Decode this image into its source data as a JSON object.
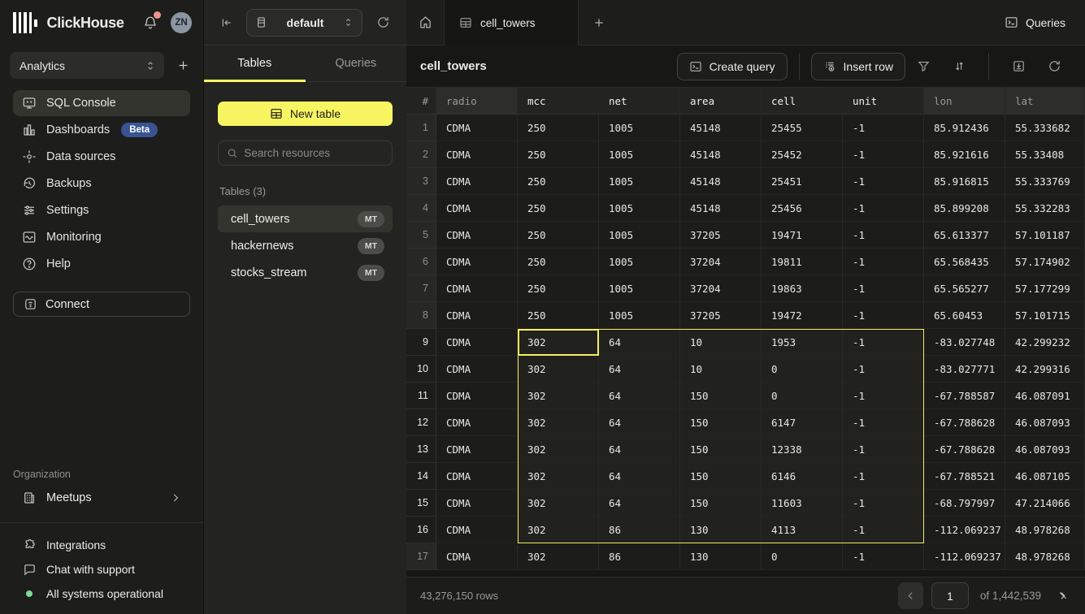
{
  "brand": {
    "name": "ClickHouse",
    "avatar_initials": "ZN"
  },
  "workspace": {
    "selected": "Analytics"
  },
  "sidebar": {
    "items": [
      {
        "label": "SQL Console"
      },
      {
        "label": "Dashboards",
        "badge": "Beta"
      },
      {
        "label": "Data sources"
      },
      {
        "label": "Backups"
      },
      {
        "label": "Settings"
      },
      {
        "label": "Monitoring"
      },
      {
        "label": "Help"
      }
    ],
    "connect_label": "Connect",
    "organization_label": "Organization",
    "meetups_label": "Meetups",
    "integrations_label": "Integrations",
    "chat_label": "Chat with support",
    "status_label": "All systems operational"
  },
  "explorer": {
    "database": "default",
    "tabs": {
      "tables": "Tables",
      "queries": "Queries"
    },
    "new_table_label": "New table",
    "search_placeholder": "Search resources",
    "section_label": "Tables (3)",
    "tables": [
      {
        "name": "cell_towers",
        "badge": "MT"
      },
      {
        "name": "hackernews",
        "badge": "MT"
      },
      {
        "name": "stocks_stream",
        "badge": "MT"
      }
    ]
  },
  "main": {
    "tab_label": "cell_towers",
    "queries_label": "Queries",
    "title": "cell_towers",
    "create_query_label": "Create query",
    "insert_row_label": "Insert row"
  },
  "table": {
    "columns": [
      "#",
      "radio",
      "mcc",
      "net",
      "area",
      "cell",
      "unit",
      "lon",
      "lat"
    ],
    "rows": [
      [
        "1",
        "CDMA",
        "250",
        "1005",
        "45148",
        "25455",
        "-1",
        "85.912436",
        "55.333682"
      ],
      [
        "2",
        "CDMA",
        "250",
        "1005",
        "45148",
        "25452",
        "-1",
        "85.921616",
        "55.33408"
      ],
      [
        "3",
        "CDMA",
        "250",
        "1005",
        "45148",
        "25451",
        "-1",
        "85.916815",
        "55.333769"
      ],
      [
        "4",
        "CDMA",
        "250",
        "1005",
        "45148",
        "25456",
        "-1",
        "85.899208",
        "55.332283"
      ],
      [
        "5",
        "CDMA",
        "250",
        "1005",
        "37205",
        "19471",
        "-1",
        "65.613377",
        "57.101187"
      ],
      [
        "6",
        "CDMA",
        "250",
        "1005",
        "37204",
        "19811",
        "-1",
        "65.568435",
        "57.174902"
      ],
      [
        "7",
        "CDMA",
        "250",
        "1005",
        "37204",
        "19863",
        "-1",
        "65.565277",
        "57.177299"
      ],
      [
        "8",
        "CDMA",
        "250",
        "1005",
        "37205",
        "19472",
        "-1",
        "65.60453",
        "57.101715"
      ],
      [
        "9",
        "CDMA",
        "302",
        "64",
        "10",
        "1953",
        "-1",
        "-83.027748",
        "42.299232"
      ],
      [
        "10",
        "CDMA",
        "302",
        "64",
        "10",
        "0",
        "-1",
        "-83.027771",
        "42.299316"
      ],
      [
        "11",
        "CDMA",
        "302",
        "64",
        "150",
        "0",
        "-1",
        "-67.788587",
        "46.087091"
      ],
      [
        "12",
        "CDMA",
        "302",
        "64",
        "150",
        "6147",
        "-1",
        "-67.788628",
        "46.087093"
      ],
      [
        "13",
        "CDMA",
        "302",
        "64",
        "150",
        "12338",
        "-1",
        "-67.788628",
        "46.087093"
      ],
      [
        "14",
        "CDMA",
        "302",
        "64",
        "150",
        "6146",
        "-1",
        "-67.788521",
        "46.087105"
      ],
      [
        "15",
        "CDMA",
        "302",
        "64",
        "150",
        "11603",
        "-1",
        "-68.797997",
        "47.214066"
      ],
      [
        "16",
        "CDMA",
        "302",
        "86",
        "130",
        "4113",
        "-1",
        "-112.069237",
        "48.978268"
      ],
      [
        "17",
        "CDMA",
        "302",
        "86",
        "130",
        "0",
        "-1",
        "-112.069237",
        "48.978268"
      ]
    ],
    "selection": {
      "first_row": 9,
      "last_row": 16,
      "first_col": 2,
      "last_col": 6,
      "active_row": 9,
      "active_col": 2
    }
  },
  "footer": {
    "row_count": "43,276,150 rows",
    "page": "1",
    "page_total": "of 1,442,539"
  },
  "colors": {
    "accent_yellow": "#f7f662",
    "beta_blue": "#3a5393",
    "status_green": "#7fdc9a",
    "alert_red": "#f0938d"
  }
}
